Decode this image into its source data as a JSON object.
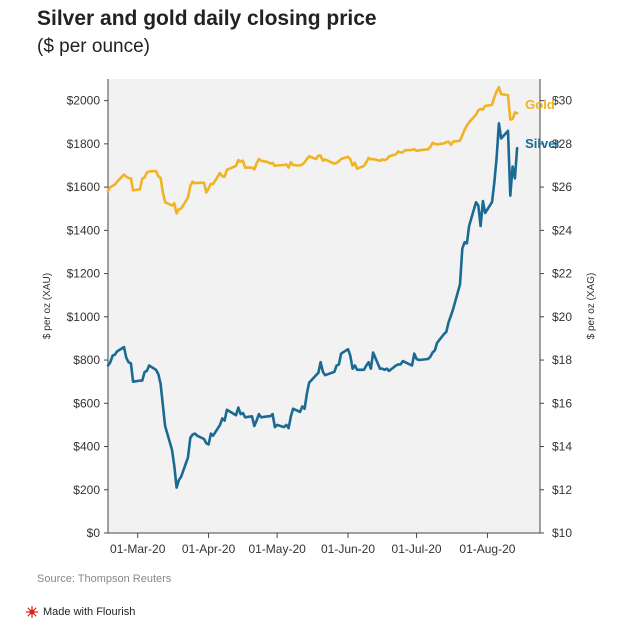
{
  "page": {
    "title": "Silver and gold daily closing price",
    "subtitle": "($ per ounce)",
    "source": "Source: Thompson Reuters",
    "credit": "Made with Flourish",
    "credit_icon": "flourish-icon"
  },
  "chart_data": {
    "type": "line",
    "title": "Silver and gold daily closing price",
    "subtitle": "($ per ounce)",
    "x_ticks": [
      "01-Mar-20",
      "01-Apr-20",
      "01-May-20",
      "01-Jun-20",
      "01-Jul-20",
      "01-Aug-20"
    ],
    "xlim": [
      "2020-02-17",
      "2020-08-24"
    ],
    "y_left": {
      "label": "$ per oz (XAU)",
      "range": [
        0,
        2000
      ],
      "ticks": [
        "$0",
        "$200",
        "$400",
        "$600",
        "$800",
        "$1000",
        "$1200",
        "$1400",
        "$1600",
        "$1800",
        "$2000"
      ],
      "tick_values": [
        0,
        200,
        400,
        600,
        800,
        1000,
        1200,
        1400,
        1600,
        1800,
        2000
      ],
      "plot_max": 2100
    },
    "y_right": {
      "label": "$ per oz (XAG)",
      "range": [
        10,
        30
      ],
      "ticks": [
        "$10",
        "$12",
        "$14",
        "$16",
        "$18",
        "$20",
        "$22",
        "$24",
        "$26",
        "$28",
        "$30"
      ],
      "tick_values": [
        10,
        12,
        14,
        16,
        18,
        20,
        22,
        24,
        26,
        28,
        30
      ]
    },
    "grid": false,
    "series": [
      {
        "name": "Gold",
        "axis": "left",
        "color": "#f0b323",
        "points": [
          [
            "2020-02-17",
            1582
          ],
          [
            "2020-02-18",
            1600
          ],
          [
            "2020-02-20",
            1612
          ],
          [
            "2020-02-21",
            1625
          ],
          [
            "2020-02-24",
            1658
          ],
          [
            "2020-02-25",
            1648
          ],
          [
            "2020-02-26",
            1642
          ],
          [
            "2020-02-27",
            1640
          ],
          [
            "2020-02-28",
            1585
          ],
          [
            "2020-03-02",
            1590
          ],
          [
            "2020-03-03",
            1640
          ],
          [
            "2020-03-04",
            1645
          ],
          [
            "2020-03-05",
            1668
          ],
          [
            "2020-03-06",
            1672
          ],
          [
            "2020-03-09",
            1675
          ],
          [
            "2020-03-10",
            1650
          ],
          [
            "2020-03-11",
            1642
          ],
          [
            "2020-03-12",
            1575
          ],
          [
            "2020-03-13",
            1530
          ],
          [
            "2020-03-16",
            1515
          ],
          [
            "2020-03-17",
            1525
          ],
          [
            "2020-03-18",
            1478
          ],
          [
            "2020-03-19",
            1498
          ],
          [
            "2020-03-20",
            1500
          ],
          [
            "2020-03-23",
            1552
          ],
          [
            "2020-03-24",
            1605
          ],
          [
            "2020-03-25",
            1625
          ],
          [
            "2020-03-26",
            1618
          ],
          [
            "2020-03-27",
            1620
          ],
          [
            "2020-03-30",
            1620
          ],
          [
            "2020-03-31",
            1575
          ],
          [
            "2020-04-01",
            1595
          ],
          [
            "2020-04-02",
            1615
          ],
          [
            "2020-04-03",
            1615
          ],
          [
            "2020-04-06",
            1665
          ],
          [
            "2020-04-07",
            1650
          ],
          [
            "2020-04-08",
            1648
          ],
          [
            "2020-04-09",
            1680
          ],
          [
            "2020-04-13",
            1698
          ],
          [
            "2020-04-14",
            1725
          ],
          [
            "2020-04-15",
            1718
          ],
          [
            "2020-04-16",
            1722
          ],
          [
            "2020-04-17",
            1690
          ],
          [
            "2020-04-20",
            1690
          ],
          [
            "2020-04-21",
            1682
          ],
          [
            "2020-04-22",
            1710
          ],
          [
            "2020-04-23",
            1730
          ],
          [
            "2020-04-24",
            1722
          ],
          [
            "2020-04-27",
            1715
          ],
          [
            "2020-04-28",
            1708
          ],
          [
            "2020-04-29",
            1712
          ],
          [
            "2020-04-30",
            1698
          ],
          [
            "2020-05-01",
            1700
          ],
          [
            "2020-05-04",
            1702
          ],
          [
            "2020-05-05",
            1705
          ],
          [
            "2020-05-06",
            1690
          ],
          [
            "2020-05-07",
            1715
          ],
          [
            "2020-05-08",
            1702
          ],
          [
            "2020-05-11",
            1700
          ],
          [
            "2020-05-12",
            1705
          ],
          [
            "2020-05-13",
            1715
          ],
          [
            "2020-05-14",
            1730
          ],
          [
            "2020-05-15",
            1742
          ],
          [
            "2020-05-18",
            1730
          ],
          [
            "2020-05-19",
            1745
          ],
          [
            "2020-05-20",
            1745
          ],
          [
            "2020-05-21",
            1722
          ],
          [
            "2020-05-22",
            1728
          ],
          [
            "2020-05-26",
            1708
          ],
          [
            "2020-05-27",
            1712
          ],
          [
            "2020-05-28",
            1720
          ],
          [
            "2020-05-29",
            1730
          ],
          [
            "2020-06-01",
            1740
          ],
          [
            "2020-06-02",
            1728
          ],
          [
            "2020-06-03",
            1700
          ],
          [
            "2020-06-04",
            1712
          ],
          [
            "2020-06-05",
            1685
          ],
          [
            "2020-06-08",
            1698
          ],
          [
            "2020-06-09",
            1715
          ],
          [
            "2020-06-10",
            1735
          ],
          [
            "2020-06-11",
            1728
          ],
          [
            "2020-06-12",
            1730
          ],
          [
            "2020-06-15",
            1722
          ],
          [
            "2020-06-16",
            1728
          ],
          [
            "2020-06-17",
            1725
          ],
          [
            "2020-06-18",
            1730
          ],
          [
            "2020-06-19",
            1742
          ],
          [
            "2020-06-22",
            1752
          ],
          [
            "2020-06-23",
            1765
          ],
          [
            "2020-06-24",
            1760
          ],
          [
            "2020-06-25",
            1762
          ],
          [
            "2020-06-26",
            1770
          ],
          [
            "2020-06-29",
            1772
          ],
          [
            "2020-06-30",
            1775
          ],
          [
            "2020-07-01",
            1768
          ],
          [
            "2020-07-02",
            1770
          ],
          [
            "2020-07-06",
            1775
          ],
          [
            "2020-07-07",
            1785
          ],
          [
            "2020-07-08",
            1805
          ],
          [
            "2020-07-09",
            1800
          ],
          [
            "2020-07-10",
            1798
          ],
          [
            "2020-07-13",
            1802
          ],
          [
            "2020-07-14",
            1808
          ],
          [
            "2020-07-15",
            1810
          ],
          [
            "2020-07-16",
            1795
          ],
          [
            "2020-07-17",
            1810
          ],
          [
            "2020-07-20",
            1815
          ],
          [
            "2020-07-21",
            1840
          ],
          [
            "2020-07-22",
            1865
          ],
          [
            "2020-07-23",
            1885
          ],
          [
            "2020-07-24",
            1900
          ],
          [
            "2020-07-27",
            1935
          ],
          [
            "2020-07-28",
            1955
          ],
          [
            "2020-07-29",
            1962
          ],
          [
            "2020-07-30",
            1958
          ],
          [
            "2020-07-31",
            1975
          ],
          [
            "2020-08-03",
            1980
          ],
          [
            "2020-08-04",
            2015
          ],
          [
            "2020-08-05",
            2042
          ],
          [
            "2020-08-06",
            2062
          ],
          [
            "2020-08-07",
            2030
          ],
          [
            "2020-08-10",
            2025
          ],
          [
            "2020-08-11",
            1912
          ],
          [
            "2020-08-12",
            1915
          ],
          [
            "2020-08-13",
            1945
          ],
          [
            "2020-08-14",
            1942
          ]
        ]
      },
      {
        "name": "Silver",
        "axis": "right",
        "color": "#1a6a93",
        "points": [
          [
            "2020-02-17",
            17.75
          ],
          [
            "2020-02-18",
            17.9
          ],
          [
            "2020-02-19",
            18.2
          ],
          [
            "2020-02-20",
            18.25
          ],
          [
            "2020-02-21",
            18.4
          ],
          [
            "2020-02-24",
            18.6
          ],
          [
            "2020-02-25",
            18.1
          ],
          [
            "2020-02-26",
            17.9
          ],
          [
            "2020-02-27",
            17.85
          ],
          [
            "2020-02-28",
            17.0
          ],
          [
            "2020-03-02",
            17.05
          ],
          [
            "2020-03-03",
            17.05
          ],
          [
            "2020-03-04",
            17.45
          ],
          [
            "2020-03-05",
            17.5
          ],
          [
            "2020-03-06",
            17.75
          ],
          [
            "2020-03-09",
            17.55
          ],
          [
            "2020-03-10",
            17.35
          ],
          [
            "2020-03-11",
            16.9
          ],
          [
            "2020-03-12",
            15.9
          ],
          [
            "2020-03-13",
            14.95
          ],
          [
            "2020-03-16",
            13.85
          ],
          [
            "2020-03-17",
            13.1
          ],
          [
            "2020-03-18",
            12.1
          ],
          [
            "2020-03-19",
            12.45
          ],
          [
            "2020-03-20",
            12.6
          ],
          [
            "2020-03-23",
            13.5
          ],
          [
            "2020-03-24",
            14.4
          ],
          [
            "2020-03-25",
            14.55
          ],
          [
            "2020-03-26",
            14.6
          ],
          [
            "2020-03-27",
            14.5
          ],
          [
            "2020-03-30",
            14.35
          ],
          [
            "2020-03-31",
            14.15
          ],
          [
            "2020-04-01",
            14.1
          ],
          [
            "2020-04-02",
            14.6
          ],
          [
            "2020-04-03",
            14.5
          ],
          [
            "2020-04-06",
            15.0
          ],
          [
            "2020-04-07",
            15.3
          ],
          [
            "2020-04-08",
            15.2
          ],
          [
            "2020-04-09",
            15.7
          ],
          [
            "2020-04-13",
            15.45
          ],
          [
            "2020-04-14",
            15.8
          ],
          [
            "2020-04-15",
            15.5
          ],
          [
            "2020-04-16",
            15.55
          ],
          [
            "2020-04-17",
            15.35
          ],
          [
            "2020-04-20",
            15.4
          ],
          [
            "2020-04-21",
            14.95
          ],
          [
            "2020-04-22",
            15.2
          ],
          [
            "2020-04-23",
            15.5
          ],
          [
            "2020-04-24",
            15.35
          ],
          [
            "2020-04-27",
            15.4
          ],
          [
            "2020-04-28",
            15.4
          ],
          [
            "2020-04-29",
            15.5
          ],
          [
            "2020-04-30",
            14.9
          ],
          [
            "2020-05-01",
            15.0
          ],
          [
            "2020-05-04",
            14.9
          ],
          [
            "2020-05-05",
            15.0
          ],
          [
            "2020-05-06",
            14.85
          ],
          [
            "2020-05-07",
            15.4
          ],
          [
            "2020-05-08",
            15.75
          ],
          [
            "2020-05-11",
            15.6
          ],
          [
            "2020-05-12",
            15.85
          ],
          [
            "2020-05-13",
            15.75
          ],
          [
            "2020-05-14",
            16.45
          ],
          [
            "2020-05-15",
            16.95
          ],
          [
            "2020-05-18",
            17.3
          ],
          [
            "2020-05-19",
            17.4
          ],
          [
            "2020-05-20",
            17.9
          ],
          [
            "2020-05-21",
            17.45
          ],
          [
            "2020-05-22",
            17.3
          ],
          [
            "2020-05-26",
            17.45
          ],
          [
            "2020-05-27",
            17.75
          ],
          [
            "2020-05-28",
            17.8
          ],
          [
            "2020-05-29",
            18.3
          ],
          [
            "2020-06-01",
            18.5
          ],
          [
            "2020-06-02",
            18.2
          ],
          [
            "2020-06-03",
            17.6
          ],
          [
            "2020-06-04",
            17.75
          ],
          [
            "2020-06-05",
            17.55
          ],
          [
            "2020-06-08",
            17.55
          ],
          [
            "2020-06-09",
            17.75
          ],
          [
            "2020-06-10",
            17.9
          ],
          [
            "2020-06-11",
            17.6
          ],
          [
            "2020-06-12",
            18.35
          ],
          [
            "2020-06-15",
            17.6
          ],
          [
            "2020-06-16",
            17.6
          ],
          [
            "2020-06-17",
            17.55
          ],
          [
            "2020-06-18",
            17.6
          ],
          [
            "2020-06-19",
            17.5
          ],
          [
            "2020-06-22",
            17.75
          ],
          [
            "2020-06-23",
            17.8
          ],
          [
            "2020-06-24",
            17.8
          ],
          [
            "2020-06-25",
            17.95
          ],
          [
            "2020-06-26",
            17.9
          ],
          [
            "2020-06-29",
            17.75
          ],
          [
            "2020-06-30",
            18.3
          ],
          [
            "2020-07-01",
            18.05
          ],
          [
            "2020-07-02",
            18.0
          ],
          [
            "2020-07-06",
            18.05
          ],
          [
            "2020-07-07",
            18.15
          ],
          [
            "2020-07-08",
            18.35
          ],
          [
            "2020-07-09",
            18.45
          ],
          [
            "2020-07-10",
            18.8
          ],
          [
            "2020-07-13",
            19.2
          ],
          [
            "2020-07-14",
            19.3
          ],
          [
            "2020-07-15",
            19.75
          ],
          [
            "2020-07-16",
            20.05
          ],
          [
            "2020-07-17",
            20.35
          ],
          [
            "2020-07-20",
            21.5
          ],
          [
            "2020-07-21",
            23.15
          ],
          [
            "2020-07-22",
            23.45
          ],
          [
            "2020-07-23",
            23.4
          ],
          [
            "2020-07-24",
            24.2
          ],
          [
            "2020-07-27",
            25.3
          ],
          [
            "2020-07-28",
            25.15
          ],
          [
            "2020-07-29",
            24.2
          ],
          [
            "2020-07-30",
            25.35
          ],
          [
            "2020-07-31",
            24.8
          ],
          [
            "2020-08-03",
            25.3
          ],
          [
            "2020-08-04",
            26.2
          ],
          [
            "2020-08-05",
            27.35
          ],
          [
            "2020-08-06",
            28.95
          ],
          [
            "2020-08-07",
            28.25
          ],
          [
            "2020-08-10",
            28.6
          ],
          [
            "2020-08-11",
            25.6
          ],
          [
            "2020-08-12",
            26.95
          ],
          [
            "2020-08-13",
            26.4
          ],
          [
            "2020-08-14",
            27.8
          ]
        ]
      }
    ],
    "legend": "inline labels at right end of lines"
  }
}
